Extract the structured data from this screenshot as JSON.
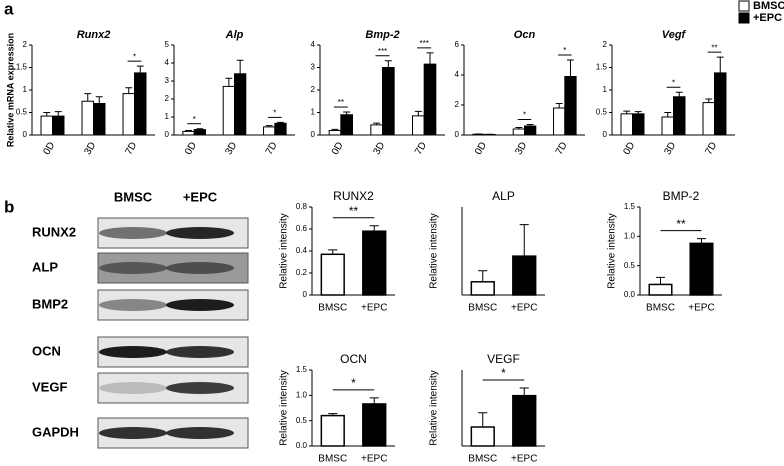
{
  "panels": [
    "a",
    "b"
  ],
  "blot": {
    "columns": [
      "BMSC",
      "+EPC"
    ],
    "rows": [
      "RUNX2",
      "ALP",
      "BMP2",
      "OCN",
      "VEGF",
      "GAPDH"
    ]
  },
  "chart_data": [
    {
      "type": "bar",
      "title": "Runx2",
      "y_label": "Relative mRNA expression",
      "categories": [
        "0D",
        "3D",
        "7D"
      ],
      "series": [
        {
          "name": "BMSC",
          "color": "#ffffff",
          "values": [
            0.42,
            0.75,
            0.92
          ],
          "errors": [
            0.08,
            0.17,
            0.13
          ]
        },
        {
          "name": "+EPC",
          "color": "#000000",
          "values": [
            0.42,
            0.7,
            1.38
          ],
          "errors": [
            0.1,
            0.15,
            0.15
          ]
        }
      ],
      "significance": [
        null,
        null,
        "*"
      ],
      "ylim": [
        0,
        2
      ],
      "yticks": [
        0,
        0.5,
        1,
        1.5,
        2
      ]
    },
    {
      "type": "bar",
      "title": "Alp",
      "categories": [
        "0D",
        "3D",
        "7D"
      ],
      "series": [
        {
          "name": "BMSC",
          "color": "#ffffff",
          "values": [
            0.2,
            2.7,
            0.45
          ],
          "errors": [
            0.05,
            0.45,
            0.07
          ]
        },
        {
          "name": "+EPC",
          "color": "#000000",
          "values": [
            0.3,
            3.4,
            0.65
          ],
          "errors": [
            0.05,
            0.75,
            0.05
          ]
        }
      ],
      "significance": [
        "*",
        null,
        "*"
      ],
      "ylim": [
        0,
        5
      ],
      "yticks": [
        0,
        1,
        2,
        3,
        4,
        5
      ]
    },
    {
      "type": "bar",
      "title": "Bmp-2",
      "categories": [
        "0D",
        "3D",
        "7D"
      ],
      "series": [
        {
          "name": "BMSC",
          "color": "#ffffff",
          "values": [
            0.2,
            0.45,
            0.85
          ],
          "errors": [
            0.05,
            0.08,
            0.2
          ]
        },
        {
          "name": "+EPC",
          "color": "#000000",
          "values": [
            0.9,
            3.0,
            3.15
          ],
          "errors": [
            0.12,
            0.3,
            0.5
          ]
        }
      ],
      "significance": [
        "**",
        "***",
        "***"
      ],
      "ylim": [
        0,
        4
      ],
      "yticks": [
        0,
        1,
        2,
        3,
        4
      ]
    },
    {
      "type": "bar",
      "title": "Ocn",
      "categories": [
        "0D",
        "3D",
        "7D"
      ],
      "series": [
        {
          "name": "BMSC",
          "color": "#ffffff",
          "values": [
            0.05,
            0.4,
            1.8
          ],
          "errors": [
            0.02,
            0.1,
            0.3
          ]
        },
        {
          "name": "+EPC",
          "color": "#000000",
          "values": [
            0.03,
            0.6,
            3.9
          ],
          "errors": [
            0.02,
            0.1,
            1.1
          ]
        }
      ],
      "significance": [
        null,
        "*",
        "*"
      ],
      "ylim": [
        0,
        6
      ],
      "yticks": [
        0,
        2,
        4,
        6
      ]
    },
    {
      "type": "bar",
      "title": "Vegf",
      "categories": [
        "0D",
        "3D",
        "7D"
      ],
      "series": [
        {
          "name": "BMSC",
          "color": "#ffffff",
          "values": [
            0.47,
            0.4,
            0.72
          ],
          "errors": [
            0.06,
            0.1,
            0.08
          ]
        },
        {
          "name": "+EPC",
          "color": "#000000",
          "values": [
            0.47,
            0.85,
            1.38
          ],
          "errors": [
            0.05,
            0.1,
            0.35
          ]
        }
      ],
      "significance": [
        null,
        "*",
        "**"
      ],
      "ylim": [
        0,
        2
      ],
      "yticks": [
        0,
        0.5,
        1,
        1.5,
        2
      ]
    },
    {
      "type": "bar",
      "title": "RUNX2",
      "y_label": "Relative intensity",
      "categories": [
        "BMSC",
        "+EPC"
      ],
      "values": [
        0.37,
        0.58
      ],
      "errors": [
        0.04,
        0.05
      ],
      "colors": [
        "#ffffff",
        "#000000"
      ],
      "significance": "**",
      "ylim": [
        0,
        0.8
      ],
      "yticks": [
        0,
        0.2,
        0.4,
        0.6,
        0.8
      ]
    },
    {
      "type": "bar",
      "title": "ALP",
      "y_label": "Relative intensity",
      "categories": [
        "BMSC",
        "+EPC"
      ],
      "values": [
        0.18,
        0.53
      ],
      "errors": [
        0.15,
        0.43
      ],
      "colors": [
        "#ffffff",
        "#000000"
      ],
      "ylim": [
        0,
        1.2
      ]
    },
    {
      "type": "bar",
      "title": "BMP-2",
      "y_label": "Relative intensity",
      "categories": [
        "BMSC",
        "+EPC"
      ],
      "values": [
        0.18,
        0.88
      ],
      "errors": [
        0.12,
        0.08
      ],
      "colors": [
        "#ffffff",
        "#000000"
      ],
      "significance": "**",
      "ylim": [
        0,
        1.5
      ],
      "yticks": [
        {
          "value": 0,
          "label": "0.0"
        },
        0.5,
        {
          "value": 1,
          "label": "1.0"
        },
        1.5
      ]
    },
    {
      "type": "bar",
      "title": "OCN",
      "y_label": "Relative intensity",
      "categories": [
        "BMSC",
        "+EPC"
      ],
      "values": [
        0.6,
        0.83
      ],
      "errors": [
        0.04,
        0.12
      ],
      "colors": [
        "#ffffff",
        "#000000"
      ],
      "significance": "*",
      "ylim": [
        0,
        1.5
      ],
      "yticks": [
        {
          "value": 0,
          "label": "0.0"
        },
        0.5,
        {
          "value": 1,
          "label": "1.0"
        },
        1.5
      ]
    },
    {
      "type": "bar",
      "title": "VEGF",
      "y_label": "Relative intensity",
      "categories": [
        "BMSC",
        "+EPC"
      ],
      "values": [
        0.2,
        0.53
      ],
      "errors": [
        0.15,
        0.08
      ],
      "colors": [
        "#ffffff",
        "#000000"
      ],
      "significance": "*",
      "ylim": [
        0,
        0.8
      ]
    }
  ]
}
